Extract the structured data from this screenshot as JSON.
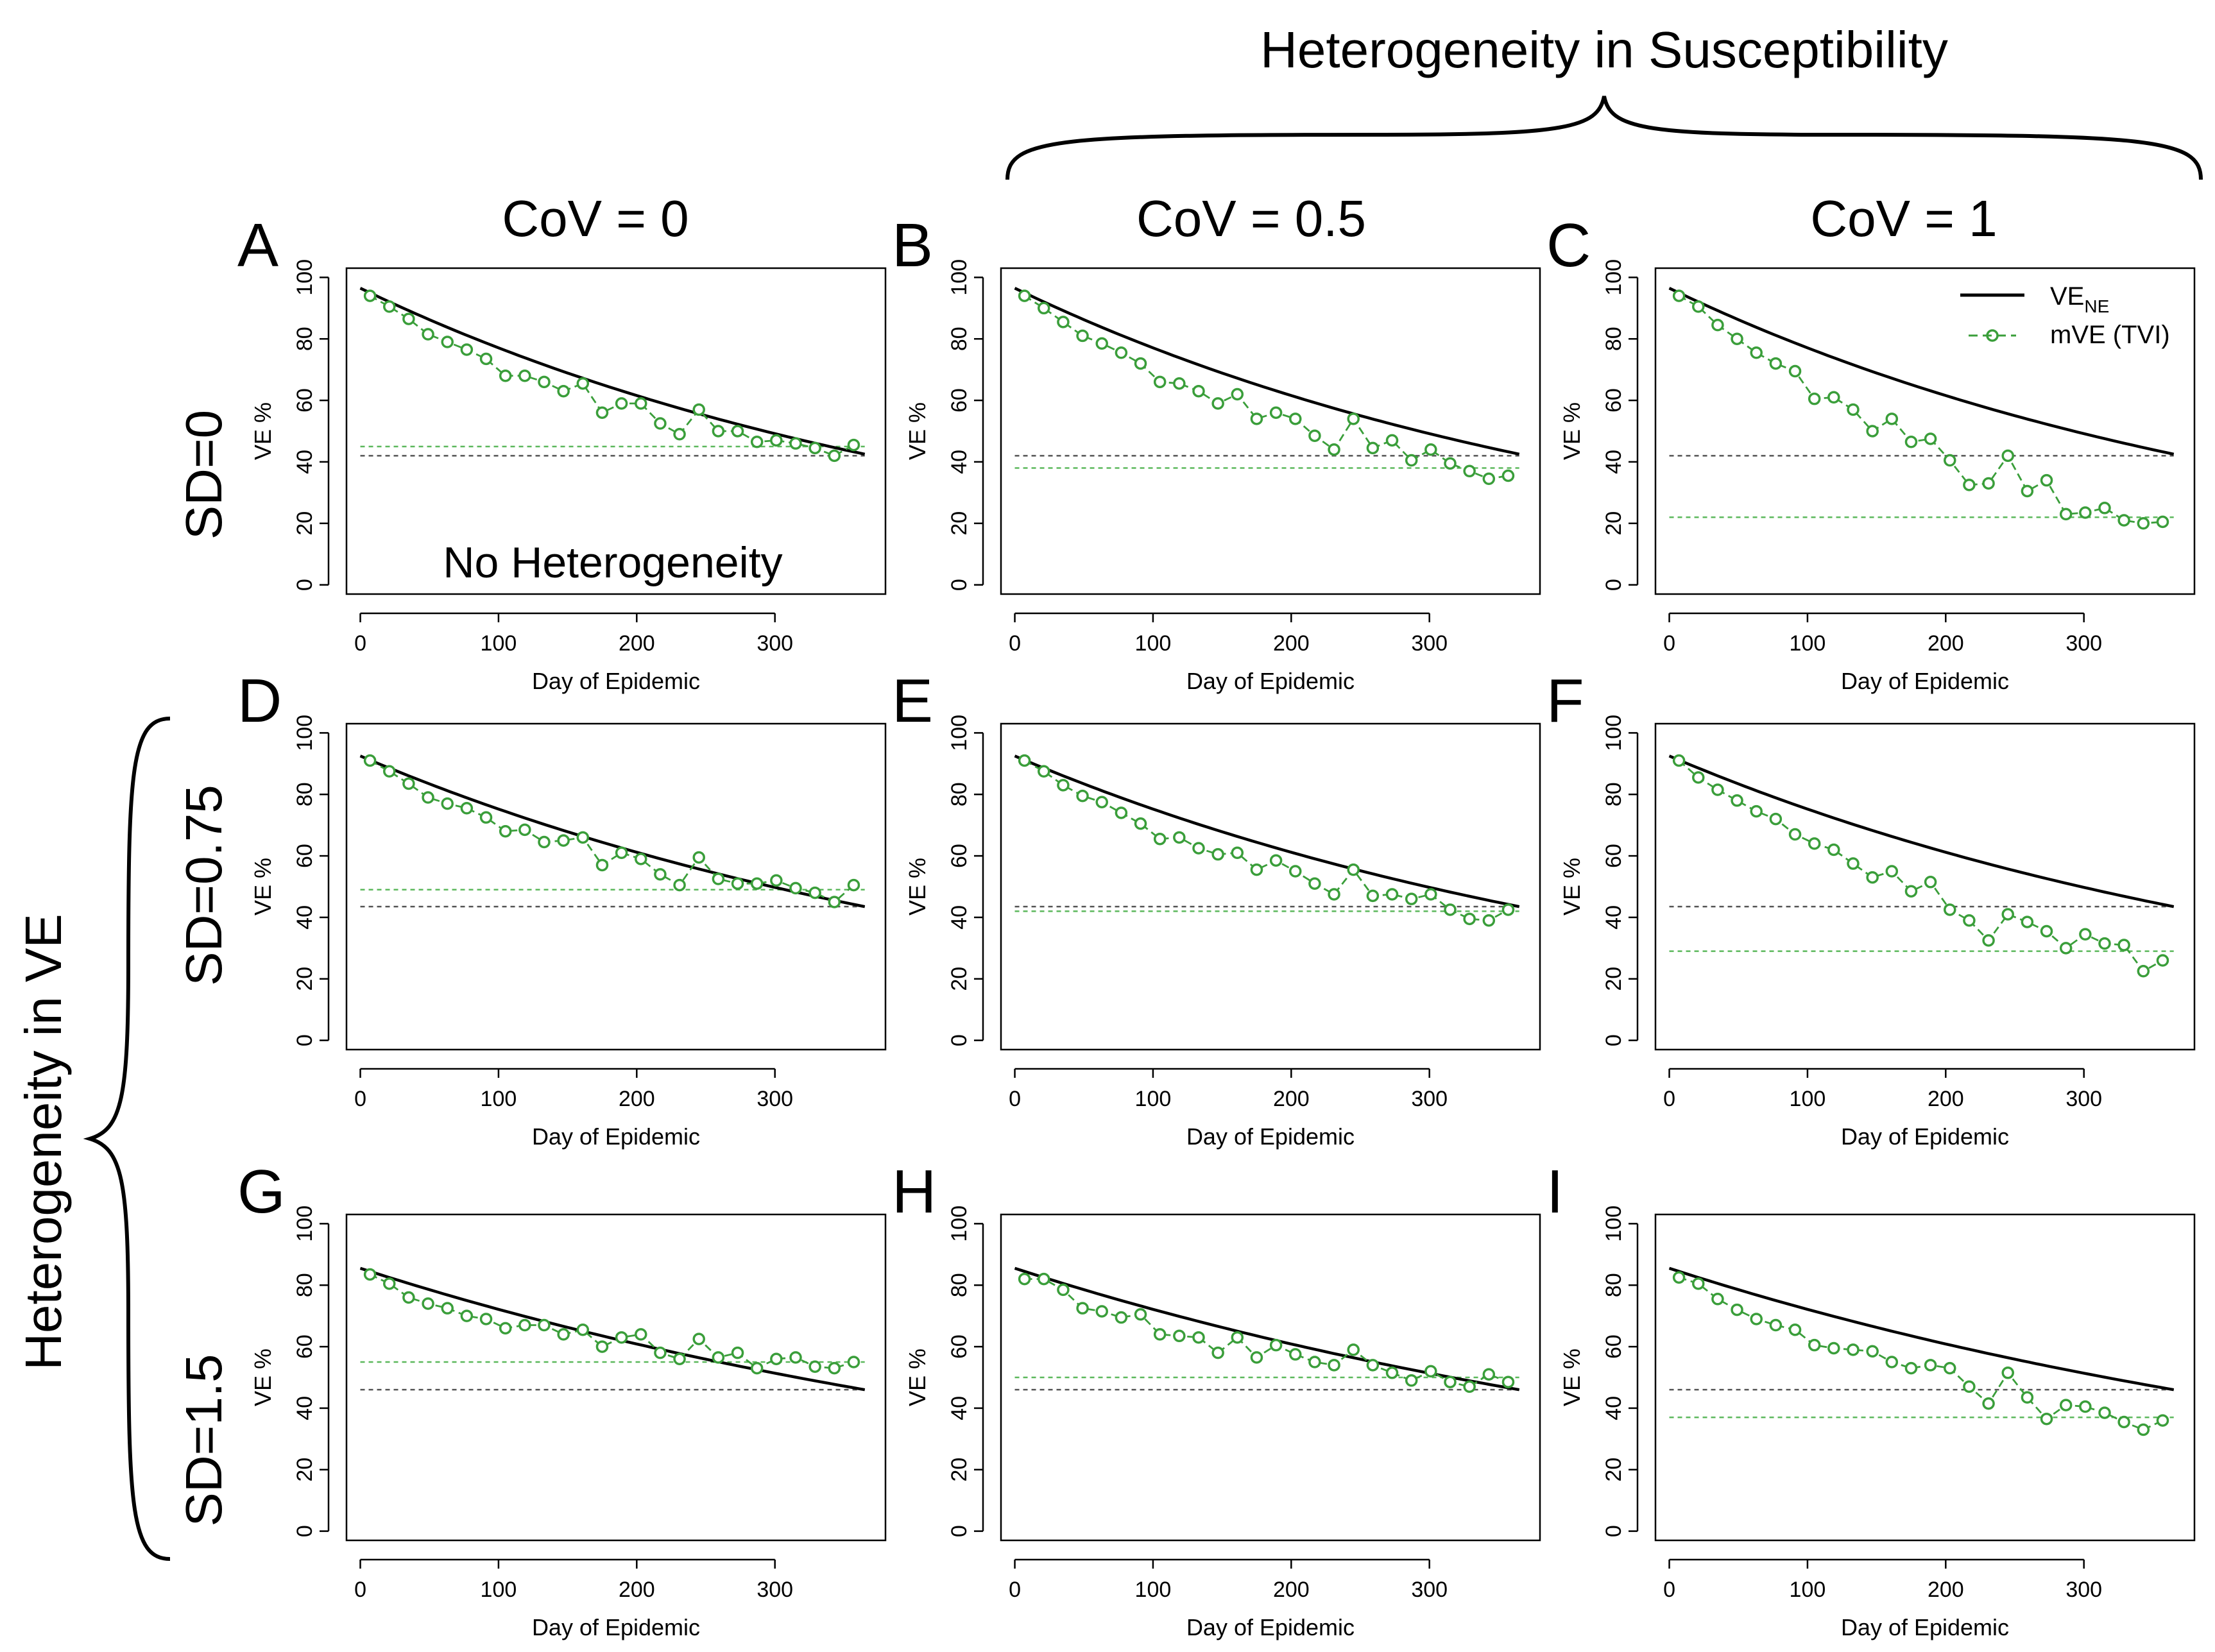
{
  "figure": {
    "top_title": "Heterogeneity in Susceptibility",
    "left_title": "Heterogeneity in VE",
    "col_titles": [
      "CoV = 0",
      "CoV = 0.5",
      "CoV = 1"
    ],
    "row_titles": [
      "SD=0",
      "SD=0.75",
      "SD=1.5"
    ],
    "note": "No Heterogeneity",
    "legend": {
      "position": "top-right of panel C",
      "items": [
        {
          "label": "VE",
          "subscript": "NE",
          "style": "solid-line",
          "color": "#000000"
        },
        {
          "label": "mVE (TVI)",
          "style": "dashed-line-open-circles",
          "color": "#3a9e3a"
        }
      ]
    },
    "colors": {
      "ve_ne": "#000000",
      "mve": "#3a9e3a",
      "ref_black": "#555555",
      "ref_green": "#5cb85c"
    }
  },
  "chart_data": [
    {
      "type": "line",
      "panel": "A",
      "xlabel": "Day of Epidemic",
      "ylabel": "VE %",
      "xlim": [
        -10,
        380
      ],
      "ylim": [
        -3,
        103
      ],
      "x_ticks": [
        0,
        100,
        200,
        300
      ],
      "y_ticks": [
        0,
        20,
        40,
        60,
        80,
        100
      ],
      "ve_ne": {
        "start": 96.5,
        "end": 42.5
      },
      "ref_black": 42,
      "ref_green": 45,
      "mve_x": [
        7,
        21,
        35,
        49,
        63,
        77,
        91,
        105,
        119,
        133,
        147,
        161,
        175,
        189,
        203,
        217,
        231,
        245,
        259,
        273,
        287,
        301,
        315,
        329,
        343,
        357
      ],
      "mve": [
        94,
        90.5,
        86.5,
        81.5,
        79,
        76.5,
        73.5,
        68,
        68,
        66,
        63,
        65.5,
        56,
        59,
        59,
        52.5,
        49,
        57,
        50,
        50,
        46.5,
        47,
        46,
        44.5,
        42,
        45.5
      ]
    },
    {
      "type": "line",
      "panel": "B",
      "xlabel": "Day of Epidemic",
      "ylabel": "VE %",
      "xlim": [
        -10,
        380
      ],
      "ylim": [
        -3,
        103
      ],
      "x_ticks": [
        0,
        100,
        200,
        300
      ],
      "y_ticks": [
        0,
        20,
        40,
        60,
        80,
        100
      ],
      "ve_ne": {
        "start": 96.5,
        "end": 42.5
      },
      "ref_black": 42,
      "ref_green": 38,
      "mve_x": [
        7,
        21,
        35,
        49,
        63,
        77,
        91,
        105,
        119,
        133,
        147,
        161,
        175,
        189,
        203,
        217,
        231,
        245,
        259,
        273,
        287,
        301,
        315,
        329,
        343,
        357
      ],
      "mve": [
        94,
        90,
        85.5,
        81,
        78.5,
        75.5,
        72,
        66,
        65.5,
        63,
        59,
        62,
        54,
        56,
        54,
        48.5,
        44,
        54,
        44.5,
        47,
        40.5,
        44,
        39.5,
        37,
        34.5,
        35.5
      ]
    },
    {
      "type": "line",
      "panel": "C",
      "xlabel": "Day of Epidemic",
      "ylabel": "VE %",
      "xlim": [
        -10,
        380
      ],
      "ylim": [
        -3,
        103
      ],
      "x_ticks": [
        0,
        100,
        200,
        300
      ],
      "y_ticks": [
        0,
        20,
        40,
        60,
        80,
        100
      ],
      "ve_ne": {
        "start": 96.5,
        "end": 42.5
      },
      "ref_black": 42,
      "ref_green": 22,
      "mve_x": [
        7,
        21,
        35,
        49,
        63,
        77,
        91,
        105,
        119,
        133,
        147,
        161,
        175,
        189,
        203,
        217,
        231,
        245,
        259,
        273,
        287,
        301,
        315,
        329,
        343,
        357
      ],
      "mve": [
        94,
        90.5,
        84.5,
        80,
        75.5,
        72,
        69.5,
        60.5,
        61,
        57,
        50,
        54,
        46.5,
        47.5,
        40.5,
        32.5,
        33,
        42,
        30.5,
        34,
        23,
        23.5,
        25,
        21,
        20,
        20.5
      ]
    },
    {
      "type": "line",
      "panel": "D",
      "xlabel": "Day of Epidemic",
      "ylabel": "VE %",
      "xlim": [
        -10,
        380
      ],
      "ylim": [
        -3,
        103
      ],
      "x_ticks": [
        0,
        100,
        200,
        300
      ],
      "y_ticks": [
        0,
        20,
        40,
        60,
        80,
        100
      ],
      "ve_ne": {
        "start": 92.5,
        "end": 43.5
      },
      "ref_black": 43.5,
      "ref_green": 49,
      "mve_x": [
        7,
        21,
        35,
        49,
        63,
        77,
        91,
        105,
        119,
        133,
        147,
        161,
        175,
        189,
        203,
        217,
        231,
        245,
        259,
        273,
        287,
        301,
        315,
        329,
        343,
        357
      ],
      "mve": [
        91,
        87.5,
        83.5,
        79,
        77,
        75.5,
        72.5,
        68,
        68.5,
        64.5,
        65,
        66,
        57,
        61,
        59,
        54,
        50.5,
        59.5,
        52.5,
        51,
        51,
        52,
        49.5,
        48,
        45,
        50.5
      ]
    },
    {
      "type": "line",
      "panel": "E",
      "xlabel": "Day of Epidemic",
      "ylabel": "VE %",
      "xlim": [
        -10,
        380
      ],
      "ylim": [
        -3,
        103
      ],
      "x_ticks": [
        0,
        100,
        200,
        300
      ],
      "y_ticks": [
        0,
        20,
        40,
        60,
        80,
        100
      ],
      "ve_ne": {
        "start": 92.5,
        "end": 43.5
      },
      "ref_black": 43.5,
      "ref_green": 42,
      "mve_x": [
        7,
        21,
        35,
        49,
        63,
        77,
        91,
        105,
        119,
        133,
        147,
        161,
        175,
        189,
        203,
        217,
        231,
        245,
        259,
        273,
        287,
        301,
        315,
        329,
        343,
        357
      ],
      "mve": [
        91,
        87.5,
        83,
        79.5,
        77.5,
        74,
        70.5,
        65.5,
        66,
        62.5,
        60.5,
        61,
        55.5,
        58.5,
        55,
        51,
        47.5,
        55.5,
        47,
        47.5,
        46,
        47.5,
        42.5,
        39.5,
        39,
        42.5
      ]
    },
    {
      "type": "line",
      "panel": "F",
      "xlabel": "Day of Epidemic",
      "ylabel": "VE %",
      "xlim": [
        -10,
        380
      ],
      "ylim": [
        -3,
        103
      ],
      "x_ticks": [
        0,
        100,
        200,
        300
      ],
      "y_ticks": [
        0,
        20,
        40,
        60,
        80,
        100
      ],
      "ve_ne": {
        "start": 92.5,
        "end": 43.5
      },
      "ref_black": 43.5,
      "ref_green": 29,
      "mve_x": [
        7,
        21,
        35,
        49,
        63,
        77,
        91,
        105,
        119,
        133,
        147,
        161,
        175,
        189,
        203,
        217,
        231,
        245,
        259,
        273,
        287,
        301,
        315,
        329,
        343,
        357
      ],
      "mve": [
        91,
        85.5,
        81.5,
        78,
        74.5,
        72,
        67,
        64,
        62,
        57.5,
        53,
        55,
        48.5,
        51.5,
        42.5,
        39,
        32.5,
        41,
        38.5,
        35.5,
        30,
        34.5,
        31.5,
        31,
        22.5,
        26
      ]
    },
    {
      "type": "line",
      "panel": "G",
      "xlabel": "Day of Epidemic",
      "ylabel": "VE %",
      "xlim": [
        -10,
        380
      ],
      "ylim": [
        -3,
        103
      ],
      "x_ticks": [
        0,
        100,
        200,
        300
      ],
      "y_ticks": [
        0,
        20,
        40,
        60,
        80,
        100
      ],
      "ve_ne": {
        "start": 85.5,
        "end": 46
      },
      "ref_black": 46,
      "ref_green": 55,
      "mve_x": [
        7,
        21,
        35,
        49,
        63,
        77,
        91,
        105,
        119,
        133,
        147,
        161,
        175,
        189,
        203,
        217,
        231,
        245,
        259,
        273,
        287,
        301,
        315,
        329,
        343,
        357
      ],
      "mve": [
        83.5,
        80.5,
        76,
        74,
        72.5,
        70,
        69,
        66,
        67,
        67,
        64,
        65.5,
        60,
        63,
        64,
        58,
        56,
        62.5,
        56.5,
        58,
        53,
        56,
        56.5,
        53.5,
        53,
        55
      ]
    },
    {
      "type": "line",
      "panel": "H",
      "xlabel": "Day of Epidemic",
      "ylabel": "VE %",
      "xlim": [
        -10,
        380
      ],
      "ylim": [
        -3,
        103
      ],
      "x_ticks": [
        0,
        100,
        200,
        300
      ],
      "y_ticks": [
        0,
        20,
        40,
        60,
        80,
        100
      ],
      "ve_ne": {
        "start": 85.5,
        "end": 46
      },
      "ref_black": 46,
      "ref_green": 50,
      "mve_x": [
        7,
        21,
        35,
        49,
        63,
        77,
        91,
        105,
        119,
        133,
        147,
        161,
        175,
        189,
        203,
        217,
        231,
        245,
        259,
        273,
        287,
        301,
        315,
        329,
        343,
        357
      ],
      "mve": [
        82,
        82,
        78.5,
        72.5,
        71.5,
        69.5,
        70.5,
        64,
        63.5,
        63,
        58,
        63,
        56.5,
        60.5,
        57.5,
        55,
        54,
        59,
        54,
        51.5,
        49,
        52,
        48.5,
        47,
        51,
        48.5
      ]
    },
    {
      "type": "line",
      "panel": "I",
      "xlabel": "Day of Epidemic",
      "ylabel": "VE %",
      "xlim": [
        -10,
        380
      ],
      "ylim": [
        -3,
        103
      ],
      "x_ticks": [
        0,
        100,
        200,
        300
      ],
      "y_ticks": [
        0,
        20,
        40,
        60,
        80,
        100
      ],
      "ve_ne": {
        "start": 85.5,
        "end": 46
      },
      "ref_black": 46,
      "ref_green": 37,
      "mve_x": [
        7,
        21,
        35,
        49,
        63,
        77,
        91,
        105,
        119,
        133,
        147,
        161,
        175,
        189,
        203,
        217,
        231,
        245,
        259,
        273,
        287,
        301,
        315,
        329,
        343,
        357
      ],
      "mve": [
        82.5,
        80.5,
        75.5,
        72,
        69,
        67,
        65.5,
        60.5,
        59.5,
        59,
        58.5,
        55,
        53,
        54,
        53,
        47,
        41.5,
        51.5,
        43.5,
        36.5,
        41,
        40.5,
        38.5,
        35.5,
        33,
        36
      ]
    }
  ]
}
